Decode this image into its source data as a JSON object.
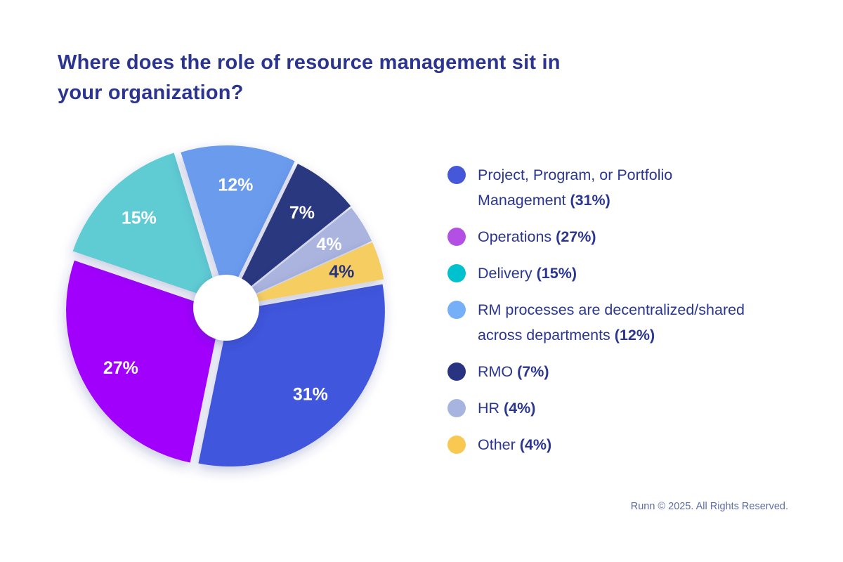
{
  "title_lines": [
    "Where does the role of resource management sit in",
    "your organization?"
  ],
  "footer": "Runn © 2025. All Rights Reserved.",
  "colors": {
    "background": "#ffffff",
    "title_text": "#2b3590",
    "legend_text": "#2b3690",
    "footer_text": "#5c6ca8"
  },
  "chart_data": {
    "type": "pie",
    "title": "Where does the role of resource management sit in your organization?",
    "total": 100,
    "hole": true,
    "legend_position": "right",
    "series": [
      {
        "key": "ppm",
        "label": "Project, Program, or Portfolio Management",
        "pct_label": "(31%)",
        "slice_label": "31%",
        "value": 31,
        "pie_color": "#4156dc",
        "legend_color": "#4558d9",
        "slice_label_color": "#ffffff"
      },
      {
        "key": "operations",
        "label": "Operations",
        "pct_label": "(27%)",
        "slice_label": "27%",
        "value": 27,
        "pie_color": "#a100fc",
        "legend_color": "#b44fe3",
        "slice_label_color": "#ffffff"
      },
      {
        "key": "delivery",
        "label": "Delivery",
        "pct_label": "(15%)",
        "slice_label": "15%",
        "value": 15,
        "pie_color": "#5fcbd2",
        "legend_color": "#00c2cf",
        "slice_label_color": "#ffffff"
      },
      {
        "key": "rm-decentralized",
        "label": "RM processes are decentralized/shared across departments",
        "pct_label": "(12%)",
        "slice_label": "12%",
        "value": 12,
        "pie_color": "#6b9bed",
        "legend_color": "#74aff7",
        "slice_label_color": "#ffffff"
      },
      {
        "key": "rmo",
        "label": "RMO",
        "pct_label": "(7%)",
        "slice_label": "7%",
        "value": 7,
        "pie_color": "#293980",
        "legend_color": "#283482",
        "slice_label_color": "#ffffff"
      },
      {
        "key": "hr",
        "label": "HR",
        "pct_label": "(4%)",
        "slice_label": "4%",
        "value": 4,
        "pie_color": "#aab4de",
        "legend_color": "#a8b4e0",
        "slice_label_color": "#ffffff"
      },
      {
        "key": "other",
        "label": "Other",
        "pct_label": "(4%)",
        "slice_label": "4%",
        "value": 4,
        "pie_color": "#f6cd60",
        "legend_color": "#f8c851",
        "slice_label_color": "#27337c"
      }
    ]
  }
}
